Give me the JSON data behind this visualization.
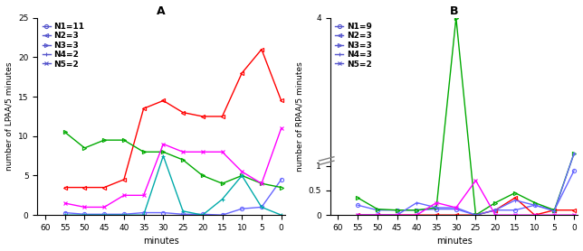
{
  "A_title": "A",
  "B_title": "B",
  "xlabel": "minutes",
  "A_ylabel": "number of LPAA/5 minutes",
  "B_ylabel": "number of RPAA/5 minutes",
  "x_values": [
    55,
    50,
    45,
    40,
    35,
    30,
    25,
    20,
    15,
    10,
    5,
    0
  ],
  "x_ticks": [
    60,
    55,
    50,
    45,
    40,
    35,
    30,
    25,
    20,
    15,
    10,
    5,
    0
  ],
  "A_legend": [
    "N1=11",
    "N2=3",
    "N3=3",
    "N4=2",
    "N5=2"
  ],
  "A_markers": [
    "o",
    "<",
    ">",
    "+",
    "x"
  ],
  "A_N1": [
    0.3,
    0.1,
    0.1,
    0.1,
    0.3,
    0.3,
    0.1,
    0.1,
    0.0,
    0.8,
    1.0,
    4.5
  ],
  "A_N2": [
    3.5,
    3.5,
    3.5,
    4.5,
    13.5,
    14.5,
    13.0,
    12.5,
    12.5,
    18.0,
    21.0,
    14.5
  ],
  "A_N3": [
    10.5,
    8.5,
    9.5,
    9.5,
    8.0,
    8.0,
    7.0,
    5.0,
    4.0,
    5.0,
    4.0,
    3.5
  ],
  "A_N4": [
    0.0,
    0.0,
    0.0,
    0.0,
    0.0,
    7.5,
    0.5,
    0.0,
    2.0,
    5.0,
    1.0,
    0.0
  ],
  "A_N5": [
    1.5,
    1.0,
    1.0,
    2.5,
    2.5,
    9.0,
    8.0,
    8.0,
    8.0,
    5.5,
    4.0,
    11.0
  ],
  "A_colors": [
    "#6666ff",
    "#ff0000",
    "#00aa00",
    "#00aaaa",
    "#ff00ff"
  ],
  "A_ylim": [
    0,
    25
  ],
  "A_yticks": [
    0,
    5,
    10,
    15,
    20,
    25
  ],
  "B_legend": [
    "N1=9",
    "N2=3",
    "N3=3",
    "N4=3",
    "N5=2"
  ],
  "B_markers": [
    "o",
    "<",
    ">",
    "+",
    "x"
  ],
  "B_N1": [
    0.2,
    0.1,
    0.1,
    0.1,
    0.12,
    0.12,
    0.0,
    0.1,
    0.1,
    0.2,
    0.1,
    0.9
  ],
  "B_N2": [
    0.0,
    0.0,
    0.0,
    0.0,
    0.0,
    0.0,
    0.0,
    0.1,
    0.35,
    0.0,
    0.1,
    0.1
  ],
  "B_N3": [
    0.35,
    0.12,
    0.1,
    0.1,
    0.15,
    4.0,
    0.0,
    0.25,
    0.45,
    0.25,
    0.1,
    1.25
  ],
  "B_N4": [
    0.0,
    0.0,
    0.0,
    0.25,
    0.15,
    0.15,
    0.0,
    0.1,
    0.3,
    0.2,
    0.08,
    1.25
  ],
  "B_N5": [
    0.0,
    0.0,
    0.0,
    0.0,
    0.25,
    0.15,
    0.7,
    0.0,
    0.0,
    0.0,
    0.0,
    0.0
  ],
  "B_colors": [
    "#6666ff",
    "#ff0000",
    "#00aa00",
    "#6666ff",
    "#ff00ff"
  ],
  "B_ylim": [
    0,
    4
  ],
  "B_yticks": [
    0,
    0.5,
    1,
    4
  ],
  "B_yticklabels": [
    "0",
    "0.5",
    "1",
    "4"
  ],
  "figsize": [
    6.44,
    2.78
  ],
  "dpi": 100,
  "bg_color": "#ffffff",
  "line_width": 1.0,
  "marker_size": 3
}
